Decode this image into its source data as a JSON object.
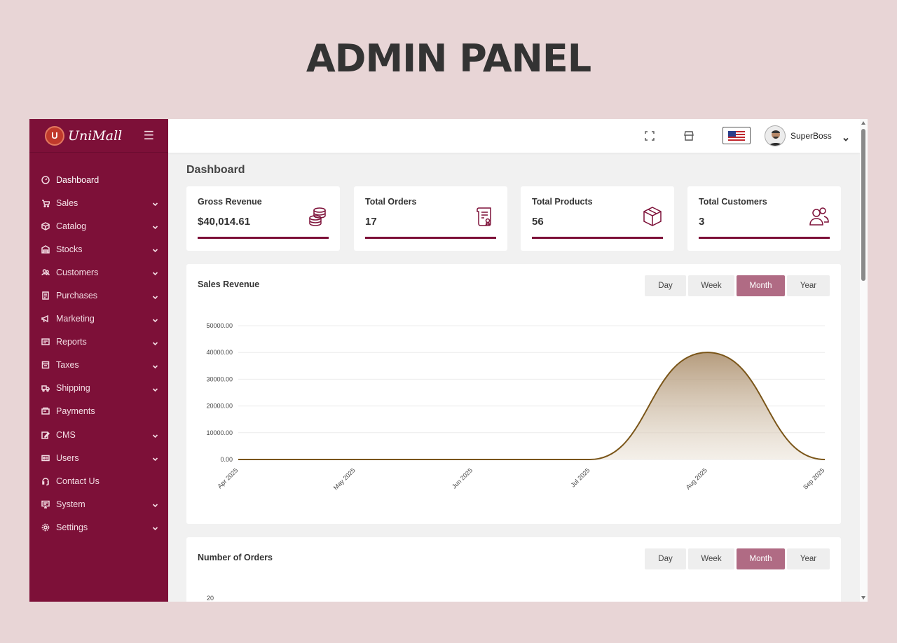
{
  "banner": {
    "title": "ADMIN PANEL"
  },
  "brand": {
    "badge": "U",
    "name": "UniMall"
  },
  "sidebar": {
    "items": [
      {
        "label": "Dashboard",
        "icon": "dashboard-icon",
        "chevron": false
      },
      {
        "label": "Sales",
        "icon": "cart-icon",
        "chevron": true
      },
      {
        "label": "Catalog",
        "icon": "box-icon",
        "chevron": true
      },
      {
        "label": "Stocks",
        "icon": "warehouse-icon",
        "chevron": true
      },
      {
        "label": "Customers",
        "icon": "users-icon",
        "chevron": true
      },
      {
        "label": "Purchases",
        "icon": "receipt-icon",
        "chevron": true
      },
      {
        "label": "Marketing",
        "icon": "megaphone-icon",
        "chevron": true
      },
      {
        "label": "Reports",
        "icon": "report-icon",
        "chevron": true
      },
      {
        "label": "Taxes",
        "icon": "tax-icon",
        "chevron": true
      },
      {
        "label": "Shipping",
        "icon": "truck-icon",
        "chevron": true
      },
      {
        "label": "Payments",
        "icon": "payment-icon",
        "chevron": false
      },
      {
        "label": "CMS",
        "icon": "edit-icon",
        "chevron": true
      },
      {
        "label": "Users",
        "icon": "id-card-icon",
        "chevron": true
      },
      {
        "label": "Contact Us",
        "icon": "headset-icon",
        "chevron": false
      },
      {
        "label": "System",
        "icon": "monitor-icon",
        "chevron": true
      },
      {
        "label": "Settings",
        "icon": "gear-icon",
        "chevron": true
      }
    ]
  },
  "topbar": {
    "user_name": "SuperBoss"
  },
  "main": {
    "page_title": "Dashboard",
    "stats": [
      {
        "label": "Gross Revenue",
        "value": "$40,014.61",
        "icon": "coins-icon"
      },
      {
        "label": "Total Orders",
        "value": "17",
        "icon": "invoice-icon"
      },
      {
        "label": "Total Products",
        "value": "56",
        "icon": "package-icon"
      },
      {
        "label": "Total Customers",
        "value": "3",
        "icon": "customers-icon"
      }
    ],
    "tabs": [
      "Day",
      "Week",
      "Month",
      "Year"
    ],
    "active_tab": "Month",
    "sales_title": "Sales Revenue",
    "orders_title": "Number of Orders"
  },
  "colors": {
    "brand": "#7d1038",
    "accent_tab": "#b06b84",
    "line": "#7a5518"
  },
  "chart_data": [
    {
      "type": "area",
      "title": "Sales Revenue",
      "x": [
        "Apr 2025",
        "May 2025",
        "Jun 2025",
        "Jul 2025",
        "Aug 2025",
        "Sep 2025"
      ],
      "values": [
        0,
        0,
        0,
        0,
        40014.61,
        0
      ],
      "y_ticks": [
        "0.00",
        "10000.00",
        "20000.00",
        "30000.00",
        "40000.00",
        "50000.00"
      ],
      "ylim": [
        0,
        50000
      ],
      "grid": true
    },
    {
      "type": "line",
      "title": "Number of Orders",
      "y_ticks_visible": [
        "20"
      ]
    }
  ]
}
